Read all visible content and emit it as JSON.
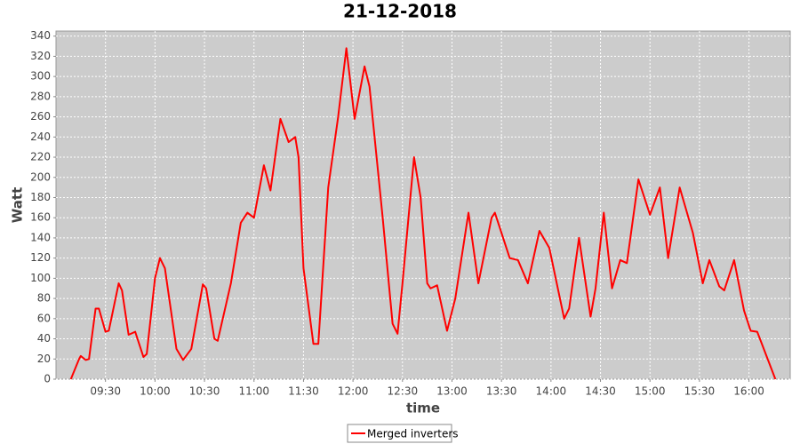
{
  "chart_data": {
    "type": "line",
    "title": "21-12-2018",
    "x_label": "time",
    "y_label": "Watt",
    "x": [
      "09:09",
      "09:14",
      "09:15",
      "09:18",
      "09:20",
      "09:24",
      "09:26",
      "09:30",
      "09:32",
      "09:38",
      "09:40",
      "09:44",
      "09:48",
      "09:53",
      "09:55",
      "10:00",
      "10:03",
      "10:06",
      "10:13",
      "10:17",
      "10:22",
      "10:29",
      "10:31",
      "10:36",
      "10:38",
      "10:46",
      "10:52",
      "10:56",
      "11:00",
      "11:06",
      "11:10",
      "11:16",
      "11:21",
      "11:25",
      "11:27",
      "11:30",
      "11:36",
      "11:39",
      "11:45",
      "11:51",
      "11:56",
      "11:58",
      "12:01",
      "12:07",
      "12:10",
      "12:18",
      "12:24",
      "12:27",
      "12:30",
      "12:37",
      "12:41",
      "12:45",
      "12:47",
      "12:51",
      "12:57",
      "13:02",
      "13:10",
      "13:16",
      "13:24",
      "13:26",
      "13:35",
      "13:40",
      "13:46",
      "13:53",
      "13:59",
      "14:08",
      "14:11",
      "14:17",
      "14:24",
      "14:27",
      "14:32",
      "14:37",
      "14:42",
      "14:46",
      "14:53",
      "15:00",
      "15:06",
      "15:11",
      "15:18",
      "15:26",
      "15:32",
      "15:36",
      "15:42",
      "15:45",
      "15:51",
      "15:57",
      "16:01",
      "16:05",
      "16:16"
    ],
    "series": [
      {
        "name": "Merged inverters",
        "color": "#ff0000",
        "values": [
          0,
          20,
          23,
          19,
          20,
          70,
          70,
          47,
          48,
          95,
          88,
          44,
          47,
          22,
          25,
          100,
          120,
          110,
          30,
          19,
          30,
          94,
          90,
          40,
          38,
          95,
          155,
          165,
          160,
          212,
          187,
          258,
          235,
          240,
          220,
          110,
          35,
          35,
          190,
          260,
          328,
          300,
          258,
          310,
          290,
          160,
          55,
          45,
          95,
          220,
          180,
          95,
          90,
          93,
          48,
          80,
          165,
          95,
          160,
          165,
          120,
          118,
          95,
          147,
          130,
          60,
          70,
          140,
          62,
          90,
          165,
          90,
          118,
          115,
          198,
          163,
          190,
          120,
          190,
          145,
          95,
          118,
          92,
          88,
          118,
          68,
          48,
          47,
          0
        ]
      }
    ],
    "xlim": [
      "09:00",
      "16:25"
    ],
    "xticks": [
      "09:30",
      "10:00",
      "10:30",
      "11:00",
      "11:30",
      "12:00",
      "12:30",
      "13:00",
      "13:30",
      "14:00",
      "14:30",
      "15:00",
      "15:30",
      "16:00"
    ],
    "ylim": [
      0,
      345
    ],
    "yticks": [
      0,
      20,
      40,
      60,
      80,
      100,
      120,
      140,
      160,
      180,
      200,
      220,
      240,
      260,
      280,
      300,
      320,
      340
    ],
    "grid": true
  }
}
